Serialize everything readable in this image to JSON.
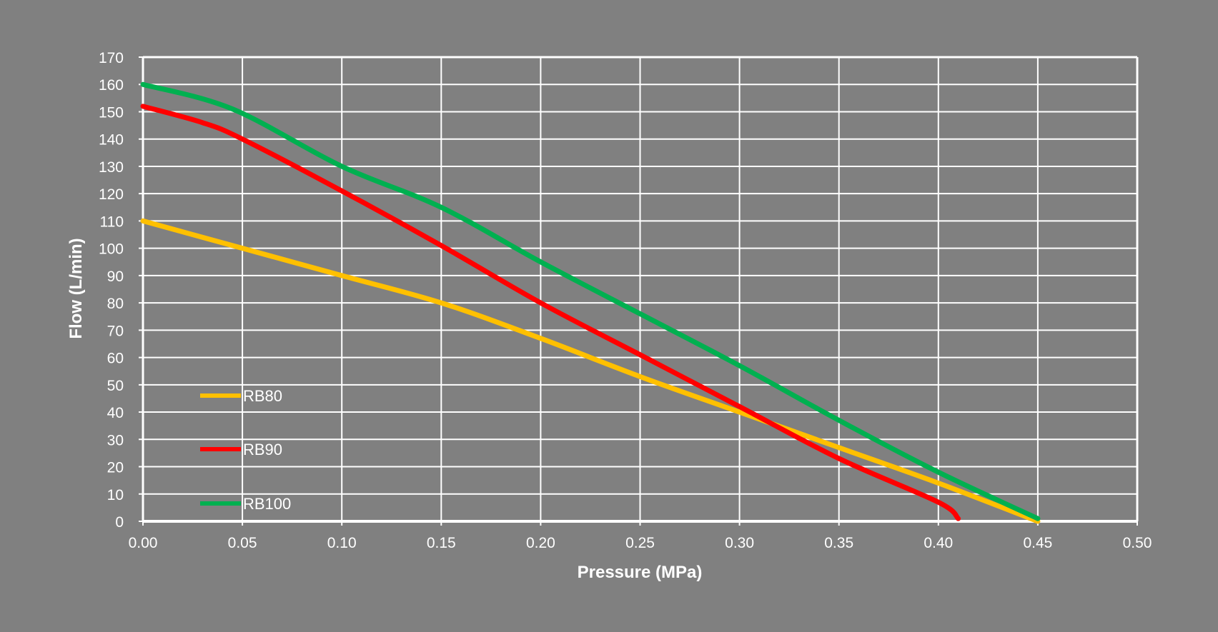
{
  "chart_data": {
    "type": "line",
    "xlabel": "Pressure (MPa)",
    "ylabel": "Flow (L/min)",
    "xlim": [
      0,
      0.5
    ],
    "ylim": [
      0,
      170
    ],
    "xticks": [
      "0.00",
      "0.05",
      "0.10",
      "0.15",
      "0.20",
      "0.25",
      "0.30",
      "0.35",
      "0.40",
      "0.45",
      "0.50"
    ],
    "yticks": [
      "0",
      "10",
      "20",
      "30",
      "40",
      "50",
      "60",
      "70",
      "80",
      "90",
      "100",
      "110",
      "120",
      "130",
      "140",
      "150",
      "160",
      "170"
    ],
    "grid": true,
    "legend_position": "bottom-left",
    "series": [
      {
        "name": "RB80",
        "color": "#FFC000",
        "x": [
          0,
          0.05,
          0.1,
          0.15,
          0.2,
          0.25,
          0.3,
          0.35,
          0.4,
          0.45
        ],
        "y": [
          110,
          100,
          90,
          80,
          67,
          53,
          40,
          27,
          14,
          0
        ]
      },
      {
        "name": "RB90",
        "color": "#FF0000",
        "x": [
          0,
          0.03,
          0.05,
          0.1,
          0.15,
          0.2,
          0.25,
          0.3,
          0.35,
          0.4,
          0.41
        ],
        "y": [
          152,
          146,
          140,
          121,
          101,
          80,
          61,
          42,
          23,
          7,
          1
        ]
      },
      {
        "name": "RB100",
        "color": "#00B050",
        "x": [
          0,
          0.045,
          0.1,
          0.15,
          0.2,
          0.25,
          0.3,
          0.35,
          0.4,
          0.45
        ],
        "y": [
          160,
          151,
          130,
          115,
          95,
          76,
          57,
          37,
          18,
          1
        ]
      }
    ]
  }
}
